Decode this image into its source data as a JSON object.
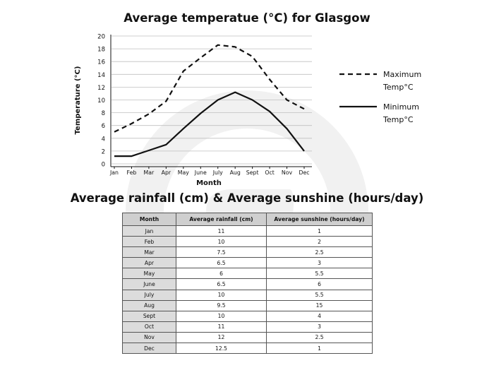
{
  "chart_data": [
    {
      "type": "line",
      "title": "Average temperatue (°C) for Glasgow",
      "xlabel": "Month",
      "ylabel": "Temperature (°C)",
      "categories": [
        "Jan",
        "Feb",
        "Mar",
        "Apr",
        "May",
        "June",
        "July",
        "Aug",
        "Sept",
        "Oct",
        "Nov",
        "Dec"
      ],
      "ylim": [
        0,
        20
      ],
      "yticks": [
        0,
        2,
        4,
        6,
        8,
        10,
        12,
        14,
        16,
        18,
        20
      ],
      "grid": true,
      "legend_position": "right",
      "series": [
        {
          "name": "Maximum Temp°C",
          "style": "dashed",
          "values": [
            5,
            6.3,
            7.8,
            9.8,
            14.5,
            16.6,
            18.6,
            18.3,
            16.8,
            13.2,
            10,
            8.6
          ]
        },
        {
          "name": "Minimum Temp°C",
          "style": "solid",
          "values": [
            1.2,
            1.2,
            2.1,
            3,
            5.5,
            7.9,
            10,
            11.2,
            10,
            8.2,
            5.5,
            2
          ]
        }
      ]
    },
    {
      "type": "table",
      "title": "Average rainfall (cm) & Average sunshine (hours/day)",
      "columns": [
        "Month",
        "Average rainfall (cm)",
        "Average sunshine (hours/day)"
      ],
      "rows": [
        [
          "Jan",
          "11",
          "1"
        ],
        [
          "Feb",
          "10",
          "2"
        ],
        [
          "Mar",
          "7.5",
          "2.5"
        ],
        [
          "Apr",
          "6.5",
          "3"
        ],
        [
          "May",
          "6",
          "5.5"
        ],
        [
          "June",
          "6.5",
          "6"
        ],
        [
          "July",
          "10",
          "5.5"
        ],
        [
          "Aug",
          "9.5",
          "15"
        ],
        [
          "Sept",
          "10",
          "4"
        ],
        [
          "Oct",
          "11",
          "3"
        ],
        [
          "Nov",
          "12",
          "2.5"
        ],
        [
          "Dec",
          "12.5",
          "1"
        ]
      ]
    }
  ],
  "colors": {
    "line": "#111111",
    "grid": "#bfbfbf",
    "header_bg": "#cfcfcf",
    "month_bg": "#dcdcdc",
    "watermark": "#f1f1f1"
  }
}
